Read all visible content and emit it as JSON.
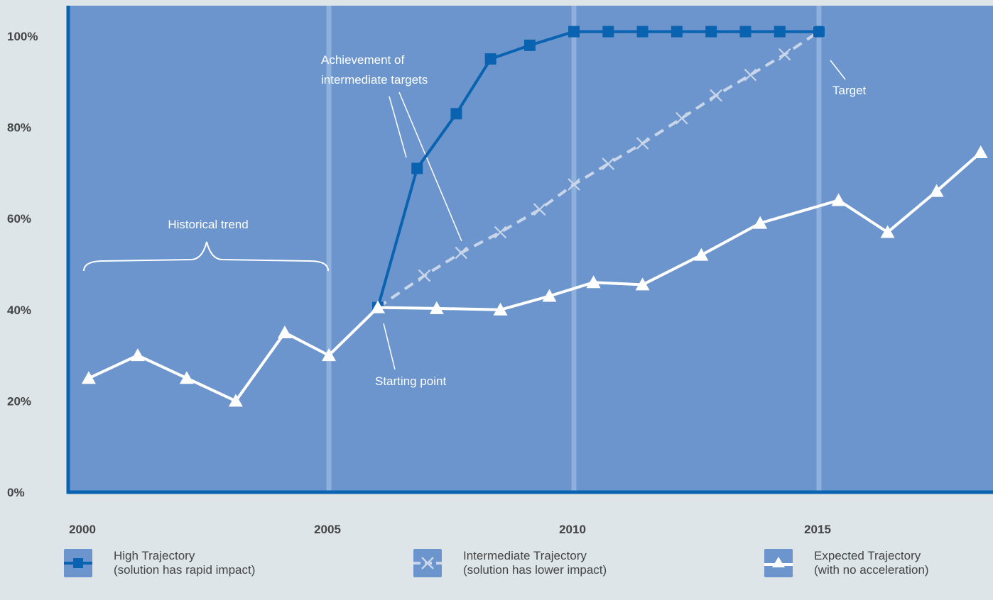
{
  "chart_data": {
    "type": "line",
    "x_ticks": [
      "2000",
      "2005",
      "2010",
      "2015"
    ],
    "y_ticks": [
      "0%",
      "20%",
      "40%",
      "60%",
      "80%",
      "100%"
    ],
    "xlim": [
      2000,
      2018.3
    ],
    "ylim": [
      0,
      100
    ],
    "grid": false,
    "vertical_reference_years": [
      2005,
      2010,
      2015
    ],
    "background_color": "#6b95cc",
    "axis_color": "#0a63b1",
    "series": [
      {
        "name": "High Trajectory",
        "color": "#0a63b1",
        "marker": "square",
        "x": [
          2006,
          2006.8,
          2007.6,
          2008.3,
          2009.1,
          2010,
          2010.7,
          2011.4,
          2012.1,
          2012.8,
          2013.5,
          2014.2,
          2015
        ],
        "y": [
          40.5,
          71,
          83,
          95,
          98,
          101,
          101,
          101,
          101,
          101,
          101,
          101,
          101
        ]
      },
      {
        "name": "Intermediate Trajectory",
        "color": "#c9d6ea",
        "marker": "x",
        "x": [
          2006,
          2006.95,
          2007.7,
          2008.5,
          2009.3,
          2010,
          2010.7,
          2011.4,
          2012.2,
          2012.9,
          2013.6,
          2014.3,
          2015
        ],
        "y": [
          40.5,
          47.5,
          52.5,
          57,
          62,
          67.5,
          72,
          76.5,
          82,
          87,
          91.5,
          96,
          101
        ]
      },
      {
        "name": "Expected Trajectory",
        "color": "#ffffff",
        "marker": "triangle",
        "x": [
          2000.1,
          2001.1,
          2002.1,
          2003.1,
          2004.1,
          2005.0,
          2006.0,
          2007.2,
          2008.5,
          2009.5,
          2010.4,
          2011.4,
          2012.6,
          2013.8,
          2015.4,
          2016.4,
          2017.4,
          2018.3
        ],
        "y": [
          25,
          30,
          25,
          20,
          35,
          30,
          40.5,
          40.3,
          40,
          43,
          46,
          45.5,
          52,
          59,
          64,
          57,
          66,
          74.5
        ]
      }
    ],
    "annotations": {
      "historical": "Historical trend",
      "achievement_line1": "Achievement of",
      "achievement_line2": "intermediate targets",
      "starting": "Starting point",
      "target": "Target"
    },
    "legend": [
      {
        "line1": "High Trajectory",
        "line2": "(solution has rapid impact)",
        "color": "#0a63b1",
        "marker": "square"
      },
      {
        "line1": "Intermediate Trajectory",
        "line2": "(solution has lower impact)",
        "color": "#c9d6ea",
        "marker": "x"
      },
      {
        "line1": "Expected Trajectory",
        "line2": "(with no acceleration)",
        "color": "#ffffff",
        "marker": "triangle"
      }
    ]
  }
}
